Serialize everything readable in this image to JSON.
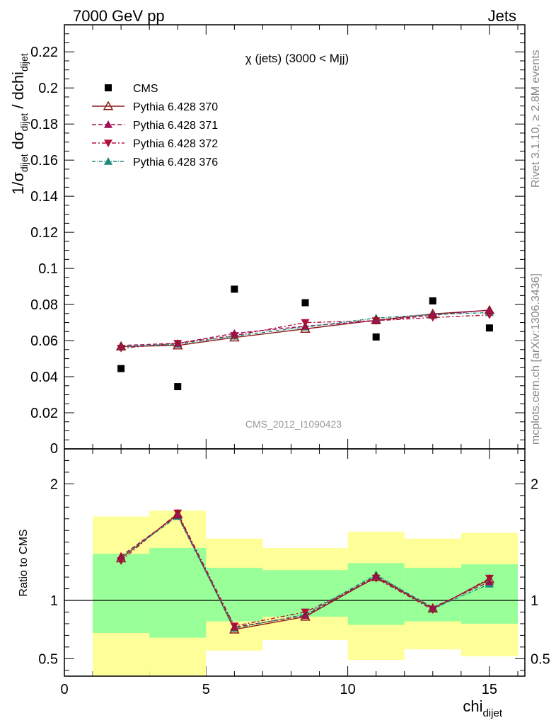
{
  "header": {
    "left_label": "7000 GeV pp",
    "right_label": "Jets",
    "side_label_rivet": "Rivet 3.1.10, ≥ 2.8M events",
    "side_label_site": "mcplots.cern.ch [arXiv:1306.3436]"
  },
  "chart_data": {
    "type": "scatter",
    "title": "χ (jets) (3000 < Mjj)",
    "watermark": "CMS_2012_I1090423",
    "xlabel": "chi",
    "xlabel_sub": "dijet",
    "ylabel_parts": [
      "1/σ",
      "dijet",
      " dσ",
      "dijet",
      " / dchi",
      "dijet"
    ],
    "ratio_ylabel": "Ratio to CMS",
    "xlim": [
      0,
      16.25
    ],
    "ylim": [
      0,
      0.235
    ],
    "ratio_ylim": [
      0.35,
      2.3
    ],
    "x_ticks": [
      0,
      5,
      10,
      15
    ],
    "y_ticks": [
      0.02,
      0.04,
      0.06,
      0.08,
      0.1,
      0.12,
      0.14,
      0.16,
      0.18,
      0.2,
      0.22
    ],
    "y_tick_labels": [
      "0.02",
      "0.04",
      "0.06",
      "0.08",
      "0.1",
      "0.12",
      "0.14",
      "0.16",
      "0.18",
      "0.2",
      "0.22"
    ],
    "y_zero_label": "0",
    "ratio_ticks": [
      0.5,
      1,
      2
    ],
    "ratio_tick_labels": [
      "0.5",
      "1",
      "2"
    ],
    "bins": [
      [
        1,
        3
      ],
      [
        3,
        5
      ],
      [
        5,
        7
      ],
      [
        7,
        10
      ],
      [
        10,
        12
      ],
      [
        12,
        14
      ],
      [
        14,
        16
      ]
    ],
    "x": [
      2,
      4,
      6,
      8.5,
      11,
      13,
      15
    ],
    "data": {
      "name": "CMS",
      "values": [
        0.0445,
        0.0345,
        0.0885,
        0.081,
        0.062,
        0.082,
        0.067
      ],
      "band_inner": [
        [
          0.72,
          1.4
        ],
        [
          0.68,
          1.45
        ],
        [
          0.82,
          1.28
        ],
        [
          0.86,
          1.26
        ],
        [
          0.79,
          1.32
        ],
        [
          0.82,
          1.28
        ],
        [
          0.8,
          1.31
        ]
      ],
      "band_outer": [
        [
          0.35,
          1.72
        ],
        [
          0.35,
          1.77
        ],
        [
          0.57,
          1.53
        ],
        [
          0.66,
          1.45
        ],
        [
          0.49,
          1.59
        ],
        [
          0.58,
          1.53
        ],
        [
          0.52,
          1.58
        ]
      ]
    },
    "series": [
      {
        "name": "Pythia 6.428 370",
        "color": "#8b1a1a",
        "marker": "triangle-up-open",
        "dash": "",
        "values": [
          0.0567,
          0.0573,
          0.0617,
          0.0665,
          0.0713,
          0.0748,
          0.0768
        ]
      },
      {
        "name": "Pythia 6.428 371",
        "color": "#a0105a",
        "marker": "triangle-up",
        "dash": "6,3",
        "values": [
          0.0573,
          0.0585,
          0.064,
          0.068,
          0.071,
          0.074,
          0.077
        ]
      },
      {
        "name": "Pythia 6.428 372",
        "color": "#b0103a",
        "marker": "triangle-down",
        "dash": "6,3,2,3",
        "values": [
          0.0558,
          0.0585,
          0.0628,
          0.07,
          0.071,
          0.0728,
          0.0742
        ]
      },
      {
        "name": "Pythia 6.428 376",
        "color": "#1a8a7a",
        "marker": "triangle-up",
        "dash": "5,2,1,2",
        "values": [
          0.0567,
          0.058,
          0.0625,
          0.0675,
          0.0725,
          0.0745,
          0.0755
        ]
      }
    ],
    "ratio_values": [
      [
        1.36,
        1.74,
        0.75,
        0.86,
        1.2,
        0.93,
        1.18
      ],
      [
        1.38,
        1.73,
        0.77,
        0.87,
        1.21,
        0.94,
        1.16
      ],
      [
        1.34,
        1.75,
        0.78,
        0.9,
        1.19,
        0.92,
        1.19
      ],
      [
        1.37,
        1.72,
        0.76,
        0.88,
        1.22,
        0.93,
        1.14
      ]
    ],
    "grid": false,
    "legend_position": "top-left",
    "colors": {
      "band_inner": "#99ff99",
      "band_outer": "#ffff99",
      "data_marker": "#000000"
    }
  }
}
